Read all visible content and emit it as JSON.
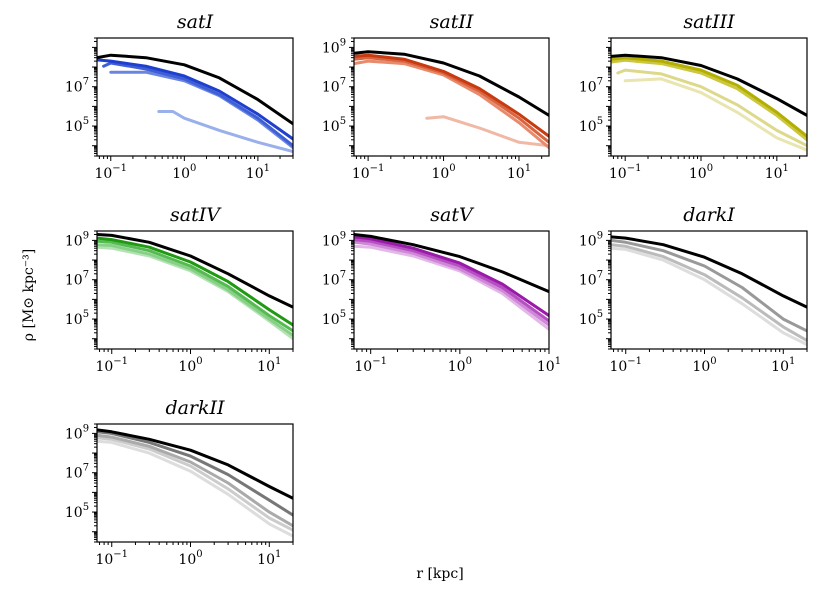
{
  "chart_data": {
    "type": "line",
    "xscale": "log",
    "yscale": "log",
    "xlabel": "r [kpc]",
    "ylabel": "ρ [M⊙ kpc⁻³]",
    "shared_ylim": [
      3000.0,
      3000000000.0
    ],
    "panels": [
      {
        "title": "satI",
        "xlim": [
          0.065,
          30
        ],
        "xticks": [
          "10−1",
          "100",
          "101"
        ],
        "yticks": [
          "105",
          "107"
        ],
        "series": [
          {
            "color": "#000000",
            "x": [
              0.065,
              0.1,
              0.3,
              1,
              3,
              10,
              30
            ],
            "y": [
              300000000.0,
              400000000.0,
              300000000.0,
              130000000.0,
              28000000.0,
              2200000.0,
              130000.0
            ]
          },
          {
            "color": "#1f3fce",
            "x": [
              0.065,
              0.1,
              0.3,
              1,
              3,
              10,
              30
            ],
            "y": [
              230000000.0,
              200000000.0,
              110000000.0,
              35000000.0,
              6000000.0,
              400000.0,
              22000.0
            ]
          },
          {
            "color": "#3f5fd6",
            "x": [
              0.08,
              0.1,
              0.3,
              1,
              3,
              10,
              30
            ],
            "y": [
              110000000.0,
              160000000.0,
              80000000.0,
              25000000.0,
              4000000.0,
              250000.0,
              10000.0
            ]
          },
          {
            "color": "#6a85e0",
            "x": [
              0.1,
              0.3,
              1,
              3,
              10,
              30
            ],
            "y": [
              55000000.0,
              55000000.0,
              20000000.0,
              3500000.0,
              200000.0,
              8000.0
            ]
          },
          {
            "color": "#9ab0ec",
            "x": [
              0.45,
              0.7,
              1,
              3,
              10,
              30
            ],
            "y": [
              550000.0,
              550000.0,
              250000.0,
              60000.0,
              15000.0,
              5000.0
            ]
          }
        ]
      },
      {
        "title": "satII",
        "xlim": [
          0.065,
          25
        ],
        "xticks": [
          "10−1",
          "100",
          "101"
        ],
        "yticks": [
          "105",
          "107",
          "109"
        ],
        "series": [
          {
            "color": "#000000",
            "x": [
              0.065,
              0.1,
              0.3,
              1,
              3,
              10,
              25
            ],
            "y": [
              500000000.0,
              600000000.0,
              450000000.0,
              160000000.0,
              35000000.0,
              3000000.0,
              350000.0
            ]
          },
          {
            "color": "#c83a10",
            "x": [
              0.065,
              0.1,
              0.3,
              1,
              3,
              10,
              25
            ],
            "y": [
              350000000.0,
              400000000.0,
              250000000.0,
              60000000.0,
              8000000.0,
              400000.0,
              30000.0
            ]
          },
          {
            "color": "#d96440",
            "x": [
              0.065,
              0.1,
              0.3,
              1,
              3,
              10,
              25
            ],
            "y": [
              250000000.0,
              300000000.0,
              200000000.0,
              50000000.0,
              6000000.0,
              250000.0,
              15000.0
            ]
          },
          {
            "color": "#e88a6c",
            "x": [
              0.065,
              0.1,
              0.3,
              1,
              3,
              10,
              25
            ],
            "y": [
              150000000.0,
              200000000.0,
              150000000.0,
              40000000.0,
              4000000.0,
              150000.0,
              8000.0
            ]
          },
          {
            "color": "#f0b8a5",
            "x": [
              0.6,
              1,
              3,
              10,
              25
            ],
            "y": [
              250000.0,
              300000.0,
              80000.0,
              15000.0,
              10000.0
            ]
          }
        ]
      },
      {
        "title": "satIII",
        "xlim": [
          0.065,
          25
        ],
        "xticks": [
          "10−1",
          "100",
          "101"
        ],
        "yticks": [
          "105",
          "107"
        ],
        "series": [
          {
            "color": "#000000",
            "x": [
              0.065,
              0.1,
              0.3,
              1,
              3,
              10,
              25
            ],
            "y": [
              350000000.0,
              400000000.0,
              300000000.0,
              120000000.0,
              25000000.0,
              2500000.0,
              350000.0
            ]
          },
          {
            "color": "#b3ae00",
            "x": [
              0.065,
              0.1,
              0.3,
              1,
              3,
              10,
              25
            ],
            "y": [
              250000000.0,
              300000000.0,
              200000000.0,
              70000000.0,
              12000000.0,
              500000.0,
              30000.0
            ]
          },
          {
            "color": "#ccc740",
            "x": [
              0.065,
              0.1,
              0.3,
              1,
              3,
              10,
              25
            ],
            "y": [
              180000000.0,
              220000000.0,
              150000000.0,
              50000000.0,
              8000000.0,
              350000.0,
              20000.0
            ]
          },
          {
            "color": "#ddd98a",
            "x": [
              0.08,
              0.1,
              0.3,
              1,
              3,
              10,
              25
            ],
            "y": [
              50000000.0,
              70000000.0,
              45000000.0,
              10000000.0,
              1200000.0,
              60000.0,
              10000.0
            ]
          },
          {
            "color": "#e8e5b0",
            "x": [
              0.1,
              0.3,
              1,
              3,
              10,
              25
            ],
            "y": [
              20000000.0,
              25000000.0,
              5000000.0,
              500000.0,
              25000.0,
              6000.0
            ]
          }
        ]
      },
      {
        "title": "satIV",
        "xlim": [
          0.065,
          20
        ],
        "xticks": [
          "10−1",
          "100",
          "101"
        ],
        "yticks": [
          "105",
          "107",
          "109"
        ],
        "series": [
          {
            "color": "#000000",
            "x": [
              0.065,
              0.1,
              0.3,
              1,
              3,
              10,
              20
            ],
            "y": [
              2000000000.0,
              1800000000.0,
              800000000.0,
              160000000.0,
              20000000.0,
              1500000.0,
              400000.0
            ]
          },
          {
            "color": "#1f9a12",
            "x": [
              0.065,
              0.1,
              0.3,
              1,
              3,
              10,
              20
            ],
            "y": [
              1300000000.0,
              1100000000.0,
              450000000.0,
              80000000.0,
              8000000.0,
              300000.0,
              50000.0
            ]
          },
          {
            "color": "#55bb50",
            "x": [
              0.065,
              0.1,
              0.3,
              1,
              3,
              10,
              20
            ],
            "y": [
              900000000.0,
              800000000.0,
              300000000.0,
              50000000.0,
              4500000.0,
              150000.0,
              25000.0
            ]
          },
          {
            "color": "#88d088",
            "x": [
              0.065,
              0.1,
              0.3,
              1,
              3,
              10,
              20
            ],
            "y": [
              600000000.0,
              550000000.0,
              200000000.0,
              35000000.0,
              3000000.0,
              100000.0,
              15000.0
            ]
          },
          {
            "color": "#b5e2b5",
            "x": [
              0.065,
              0.1,
              0.3,
              1,
              3,
              10,
              20
            ],
            "y": [
              450000000.0,
              400000000.0,
              160000000.0,
              28000000.0,
              2500000.0,
              80000.0,
              10000.0
            ]
          }
        ]
      },
      {
        "title": "satV",
        "xlim": [
          0.065,
          10
        ],
        "xticks": [
          "10−1",
          "100",
          "101"
        ],
        "yticks": [
          "105",
          "107",
          "109"
        ],
        "series": [
          {
            "color": "#000000",
            "x": [
              0.065,
              0.1,
              0.3,
              1,
              3,
              10
            ],
            "y": [
              2000000000.0,
              1600000000.0,
              600000000.0,
              150000000.0,
              25000000.0,
              2500000.0
            ]
          },
          {
            "color": "#9a1ba8",
            "x": [
              0.065,
              0.1,
              0.3,
              1,
              3,
              10
            ],
            "y": [
              1500000000.0,
              1200000000.0,
              400000000.0,
              70000000.0,
              6000000.0,
              150000.0
            ]
          },
          {
            "color": "#b650c2",
            "x": [
              0.065,
              0.1,
              0.3,
              1,
              3,
              10
            ],
            "y": [
              1100000000.0,
              900000000.0,
              300000000.0,
              50000000.0,
              4000000.0,
              80000.0
            ]
          },
          {
            "color": "#cf88d8",
            "x": [
              0.065,
              0.1,
              0.3,
              1,
              3,
              10
            ],
            "y": [
              800000000.0,
              650000000.0,
              220000000.0,
              35000000.0,
              2800000.0,
              50000.0
            ]
          },
          {
            "color": "#e3b8e8",
            "x": [
              0.065,
              0.1,
              0.3,
              1,
              3,
              10
            ],
            "y": [
              500000000.0,
              450000000.0,
              160000000.0,
              28000000.0,
              2000000.0,
              30000.0
            ]
          }
        ]
      },
      {
        "title": "darkI",
        "xlim": [
          0.065,
          20
        ],
        "xticks": [
          "10−1",
          "100",
          "101"
        ],
        "yticks": [
          "105",
          "107",
          "109"
        ],
        "series": [
          {
            "color": "#000000",
            "x": [
              0.065,
              0.1,
              0.3,
              1,
              3,
              10,
              20
            ],
            "y": [
              1500000000.0,
              1300000000.0,
              600000000.0,
              140000000.0,
              20000000.0,
              1500000.0,
              400000.0
            ]
          },
          {
            "color": "#999999",
            "x": [
              0.065,
              0.1,
              0.3,
              1,
              3,
              10,
              20
            ],
            "y": [
              1000000000.0,
              800000000.0,
              300000000.0,
              50000000.0,
              4000000.0,
              100000.0,
              25000.0
            ]
          },
          {
            "color": "#bbbbbb",
            "x": [
              0.065,
              0.1,
              0.3,
              1,
              3,
              10,
              20
            ],
            "y": [
              600000000.0,
              500000000.0,
              150000000.0,
              18000000.0,
              1200000.0,
              40000.0,
              8000.0
            ]
          },
          {
            "color": "#dddddd",
            "x": [
              0.065,
              0.1,
              0.3,
              1,
              3,
              10,
              20
            ],
            "y": [
              400000000.0,
              350000000.0,
              100000000.0,
              10000000.0,
              600000.0,
              20000.0,
              5000.0
            ]
          }
        ]
      },
      {
        "title": "darkII",
        "xlim": [
          0.065,
          20
        ],
        "xticks": [
          "10−1",
          "100",
          "101"
        ],
        "yticks": [
          "105",
          "107",
          "109"
        ],
        "series": [
          {
            "color": "#000000",
            "x": [
              0.065,
              0.1,
              0.3,
              1,
              3,
              10,
              20
            ],
            "y": [
              1500000000.0,
              1200000000.0,
              500000000.0,
              140000000.0,
              25000000.0,
              2000000.0,
              500000.0
            ]
          },
          {
            "color": "#777777",
            "x": [
              0.065,
              0.1,
              0.3,
              1,
              3,
              10,
              20
            ],
            "y": [
              1200000000.0,
              1000000000.0,
              350000000.0,
              70000000.0,
              8000000.0,
              400000.0,
              70000.0
            ]
          },
          {
            "color": "#aaaaaa",
            "x": [
              0.065,
              0.1,
              0.3,
              1,
              3,
              10,
              20
            ],
            "y": [
              800000000.0,
              650000000.0,
              220000000.0,
              35000000.0,
              3000000.0,
              100000.0,
              20000.0
            ]
          },
          {
            "color": "#cccccc",
            "x": [
              0.065,
              0.1,
              0.3,
              1,
              3,
              10,
              20
            ],
            "y": [
              600000000.0,
              500000000.0,
              160000000.0,
              22000000.0,
              1500000.0,
              50000.0,
              12000.0
            ]
          },
          {
            "color": "#dddddd",
            "x": [
              0.065,
              0.1,
              0.3,
              1,
              3,
              10,
              20
            ],
            "y": [
              400000000.0,
              350000000.0,
              100000000.0,
              12000000.0,
              800000.0,
              25000.0,
              6000.0
            ]
          }
        ]
      }
    ]
  }
}
